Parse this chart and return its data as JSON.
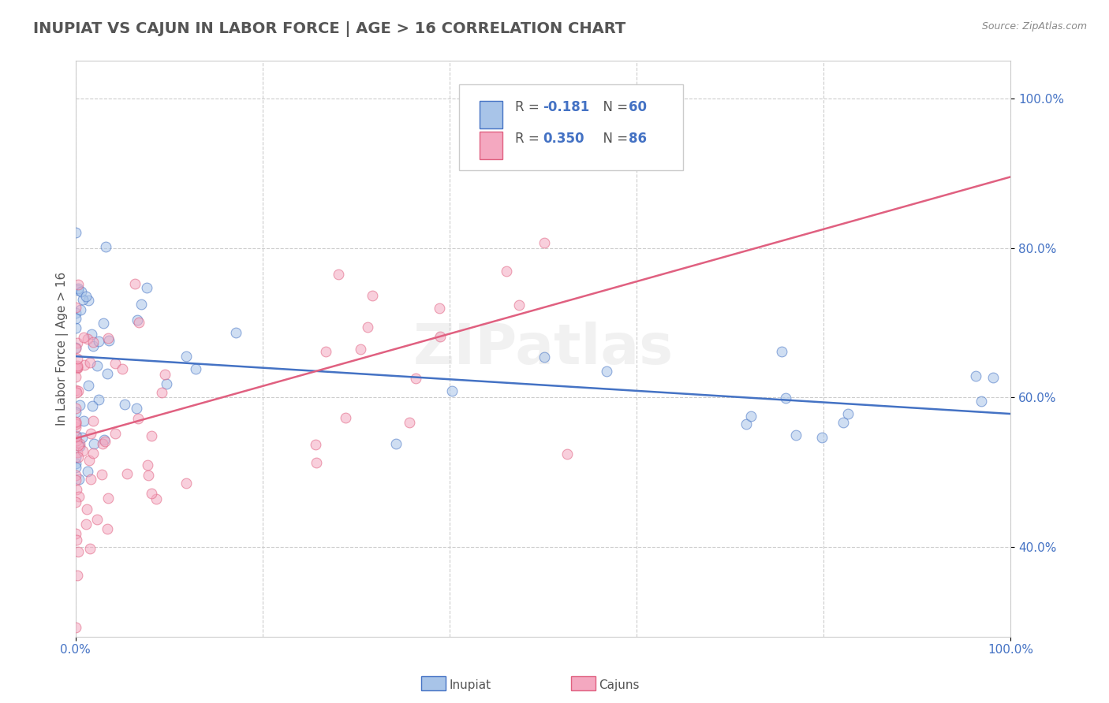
{
  "title": "INUPIAT VS CAJUN IN LABOR FORCE | AGE > 16 CORRELATION CHART",
  "source": "Source: ZipAtlas.com",
  "ylabel": "In Labor Force | Age > 16",
  "inupiat_color": "#a8c4e8",
  "cajun_color": "#f4a8c0",
  "inupiat_line_color": "#4472c4",
  "cajun_line_color": "#e06080",
  "legend_R_inupiat": "-0.181",
  "legend_N_inupiat": "60",
  "legend_R_cajun": "0.350",
  "legend_N_cajun": "86",
  "background_color": "#ffffff",
  "grid_color": "#cccccc",
  "title_color": "#555555",
  "blue_color": "#4472c4",
  "watermark": "ZIPatlas",
  "xmin": 0.0,
  "xmax": 1.0,
  "ymin": 0.28,
  "ymax": 1.05,
  "scatter_alpha": 0.55,
  "scatter_size": 85,
  "inupiat_line_y0": 0.655,
  "inupiat_line_y1": 0.578,
  "cajun_line_y0": 0.545,
  "cajun_line_y1": 0.895
}
